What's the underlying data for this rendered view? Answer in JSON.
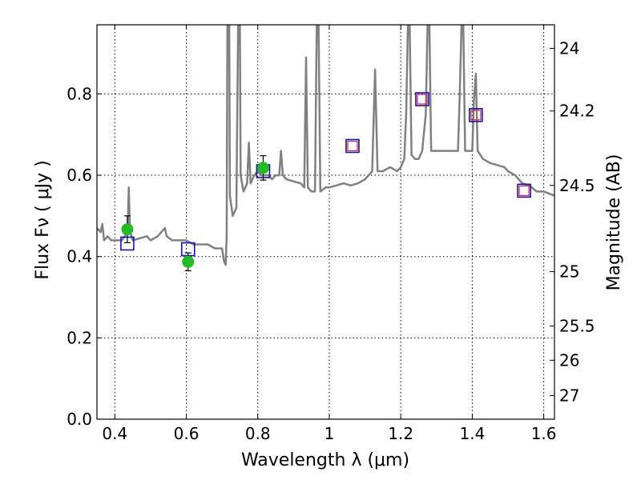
{
  "chart_data": {
    "type": "scatter",
    "xlabel": "Wavelength  λ (μm)",
    "ylabel": "Flux  Fν  ( μJy )",
    "ylabel_right": "Magnitude (AB)",
    "xlim": [
      0.35,
      1.63
    ],
    "ylim": [
      0.0,
      0.97
    ],
    "grid": true,
    "x_ticks": [
      {
        "value": 0.4,
        "label": "0.4"
      },
      {
        "value": 0.6,
        "label": "0.6"
      },
      {
        "value": 0.8,
        "label": "0.8"
      },
      {
        "value": 1.0,
        "label": "1"
      },
      {
        "value": 1.2,
        "label": "1.2"
      },
      {
        "value": 1.4,
        "label": "1.4"
      },
      {
        "value": 1.6,
        "label": "1.6"
      }
    ],
    "y_ticks": [
      {
        "value": 0.0,
        "label": "0.0"
      },
      {
        "value": 0.2,
        "label": "0.2"
      },
      {
        "value": 0.4,
        "label": "0.4"
      },
      {
        "value": 0.6,
        "label": "0.6"
      },
      {
        "value": 0.8,
        "label": "0.8"
      }
    ],
    "right_ticks": [
      {
        "flux": 0.912,
        "label": "24"
      },
      {
        "flux": 0.758,
        "label": "24.2"
      },
      {
        "flux": 0.575,
        "label": "24.5"
      },
      {
        "flux": 0.363,
        "label": "25"
      },
      {
        "flux": 0.229,
        "label": "25.5"
      },
      {
        "flux": 0.145,
        "label": "26"
      },
      {
        "flux": 0.058,
        "label": "27"
      }
    ],
    "colors": {
      "spectrum": "#808080",
      "observed": "#22bb22",
      "model_box": "#1010cc",
      "model_box_inner": "#dd2222"
    },
    "spectrum": [
      [
        0.35,
        0.47
      ],
      [
        0.36,
        0.46
      ],
      [
        0.365,
        0.48
      ],
      [
        0.37,
        0.44
      ],
      [
        0.38,
        0.45
      ],
      [
        0.39,
        0.44
      ],
      [
        0.4,
        0.44
      ],
      [
        0.42,
        0.44
      ],
      [
        0.435,
        0.46
      ],
      [
        0.437,
        0.5
      ],
      [
        0.439,
        0.57
      ],
      [
        0.441,
        0.5
      ],
      [
        0.443,
        0.46
      ],
      [
        0.45,
        0.44
      ],
      [
        0.47,
        0.445
      ],
      [
        0.49,
        0.45
      ],
      [
        0.5,
        0.44
      ],
      [
        0.52,
        0.45
      ],
      [
        0.53,
        0.46
      ],
      [
        0.54,
        0.47
      ],
      [
        0.545,
        0.45
      ],
      [
        0.56,
        0.44
      ],
      [
        0.58,
        0.44
      ],
      [
        0.6,
        0.44
      ],
      [
        0.62,
        0.43
      ],
      [
        0.64,
        0.43
      ],
      [
        0.66,
        0.43
      ],
      [
        0.68,
        0.42
      ],
      [
        0.7,
        0.42
      ],
      [
        0.705,
        0.39
      ],
      [
        0.71,
        0.38
      ],
      [
        0.713,
        0.45
      ],
      [
        0.715,
        0.97
      ],
      [
        0.72,
        0.97
      ],
      [
        0.722,
        0.55
      ],
      [
        0.73,
        0.5
      ],
      [
        0.74,
        0.52
      ],
      [
        0.745,
        0.97
      ],
      [
        0.75,
        0.97
      ],
      [
        0.752,
        0.6
      ],
      [
        0.76,
        0.56
      ],
      [
        0.77,
        0.58
      ],
      [
        0.775,
        0.68
      ],
      [
        0.78,
        0.58
      ],
      [
        0.79,
        0.6
      ],
      [
        0.8,
        0.61
      ],
      [
        0.81,
        0.6
      ],
      [
        0.83,
        0.6
      ],
      [
        0.84,
        0.59
      ],
      [
        0.85,
        0.6
      ],
      [
        0.86,
        0.6
      ],
      [
        0.865,
        0.66
      ],
      [
        0.87,
        0.6
      ],
      [
        0.88,
        0.59
      ],
      [
        0.9,
        0.585
      ],
      [
        0.92,
        0.58
      ],
      [
        0.93,
        0.57
      ],
      [
        0.935,
        0.89
      ],
      [
        0.94,
        0.57
      ],
      [
        0.95,
        0.56
      ],
      [
        0.96,
        0.56
      ],
      [
        0.965,
        0.97
      ],
      [
        0.97,
        0.97
      ],
      [
        0.975,
        0.56
      ],
      [
        0.99,
        0.57
      ],
      [
        1.0,
        0.57
      ],
      [
        1.02,
        0.575
      ],
      [
        1.04,
        0.58
      ],
      [
        1.06,
        0.575
      ],
      [
        1.08,
        0.58
      ],
      [
        1.1,
        0.59
      ],
      [
        1.11,
        0.6
      ],
      [
        1.12,
        0.61
      ],
      [
        1.128,
        0.86
      ],
      [
        1.135,
        0.61
      ],
      [
        1.15,
        0.61
      ],
      [
        1.17,
        0.62
      ],
      [
        1.19,
        0.61
      ],
      [
        1.2,
        0.62
      ],
      [
        1.21,
        0.64
      ],
      [
        1.215,
        0.75
      ],
      [
        1.22,
        0.97
      ],
      [
        1.225,
        0.97
      ],
      [
        1.23,
        0.65
      ],
      [
        1.24,
        0.64
      ],
      [
        1.25,
        0.64
      ],
      [
        1.26,
        0.66
      ],
      [
        1.27,
        0.75
      ],
      [
        1.275,
        0.97
      ],
      [
        1.28,
        0.97
      ],
      [
        1.285,
        0.66
      ],
      [
        1.3,
        0.66
      ],
      [
        1.32,
        0.66
      ],
      [
        1.34,
        0.66
      ],
      [
        1.36,
        0.66
      ],
      [
        1.365,
        0.8
      ],
      [
        1.37,
        0.97
      ],
      [
        1.375,
        0.97
      ],
      [
        1.38,
        0.66
      ],
      [
        1.39,
        0.66
      ],
      [
        1.4,
        0.66
      ],
      [
        1.405,
        0.79
      ],
      [
        1.41,
        0.85
      ],
      [
        1.415,
        0.66
      ],
      [
        1.43,
        0.64
      ],
      [
        1.45,
        0.63
      ],
      [
        1.47,
        0.625
      ],
      [
        1.49,
        0.62
      ],
      [
        1.5,
        0.61
      ],
      [
        1.52,
        0.6
      ],
      [
        1.54,
        0.58
      ],
      [
        1.56,
        0.575
      ],
      [
        1.58,
        0.56
      ],
      [
        1.6,
        0.56
      ],
      [
        1.63,
        0.55
      ]
    ],
    "observed": [
      {
        "x": 0.435,
        "y": 0.467,
        "yerr": 0.033
      },
      {
        "x": 0.605,
        "y": 0.387,
        "yerr": 0.022
      },
      {
        "x": 0.815,
        "y": 0.618,
        "yerr": 0.03
      }
    ],
    "model": [
      {
        "x": 0.435,
        "y": 0.432,
        "inner": false
      },
      {
        "x": 0.605,
        "y": 0.418,
        "inner": false
      },
      {
        "x": 0.815,
        "y": 0.61,
        "inner": false
      },
      {
        "x": 1.065,
        "y": 0.672,
        "inner": true
      },
      {
        "x": 1.26,
        "y": 0.787,
        "inner": true
      },
      {
        "x": 1.41,
        "y": 0.748,
        "inner": true
      },
      {
        "x": 1.545,
        "y": 0.562,
        "inner": true
      }
    ]
  }
}
